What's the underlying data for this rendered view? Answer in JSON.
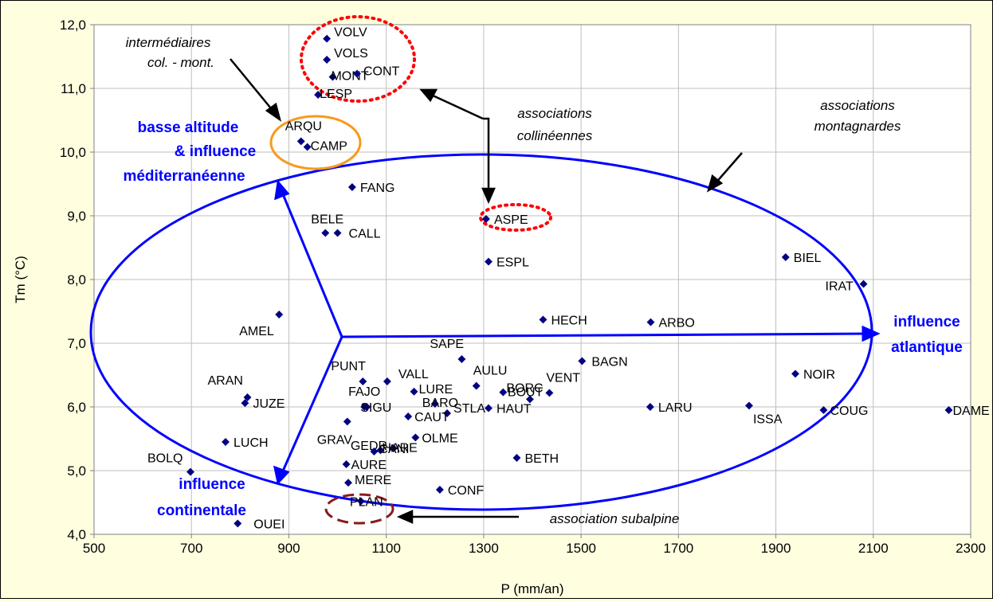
{
  "chart_data": {
    "type": "scatter",
    "xlabel": "P (mm/an)",
    "ylabel": "Tm (°C)",
    "xlim": [
      500,
      2300
    ],
    "ylim": [
      4.0,
      12.0
    ],
    "x_ticks": [
      "500",
      "700",
      "900",
      "1100",
      "1300",
      "1500",
      "1700",
      "1900",
      "2100",
      "2300"
    ],
    "y_ticks": [
      "4,0",
      "5,0",
      "6,0",
      "7,0",
      "8,0",
      "9,0",
      "10,0",
      "11,0",
      "12,0"
    ],
    "grid": true,
    "marker_color": "#000080",
    "points": [
      {
        "label": "VOLV",
        "x": 978,
        "y": 11.78
      },
      {
        "label": "VOLS",
        "x": 978,
        "y": 11.45
      },
      {
        "label": "MONT",
        "x": 990,
        "y": 11.18
      },
      {
        "label": "CONT",
        "x": 1040,
        "y": 11.23
      },
      {
        "label": "LESP",
        "x": 960,
        "y": 10.9
      },
      {
        "label": "ARQU",
        "x": 925,
        "y": 10.17
      },
      {
        "label": "CAMP",
        "x": 938,
        "y": 10.08
      },
      {
        "label": "FANG",
        "x": 1030,
        "y": 9.45
      },
      {
        "label": "ASPE",
        "x": 1305,
        "y": 8.95
      },
      {
        "label": "BELE",
        "x": 975,
        "y": 8.73
      },
      {
        "label": "CALL",
        "x": 1000,
        "y": 8.73
      },
      {
        "label": "BIEL",
        "x": 1920,
        "y": 8.35
      },
      {
        "label": "ESPL",
        "x": 1310,
        "y": 8.28
      },
      {
        "label": "IRAT",
        "x": 2080,
        "y": 7.93
      },
      {
        "label": "AMEL",
        "x": 880,
        "y": 7.45
      },
      {
        "label": "HECH",
        "x": 1422,
        "y": 7.37
      },
      {
        "label": "ARBO",
        "x": 1643,
        "y": 7.33
      },
      {
        "label": "SAPE",
        "x": 1255,
        "y": 6.75
      },
      {
        "label": "BAGN",
        "x": 1502,
        "y": 6.72
      },
      {
        "label": "NOIR",
        "x": 1940,
        "y": 6.52
      },
      {
        "label": "PUNT",
        "x": 1052,
        "y": 6.4
      },
      {
        "label": "VALL",
        "x": 1102,
        "y": 6.4
      },
      {
        "label": "AULU",
        "x": 1285,
        "y": 6.33
      },
      {
        "label": "BORC",
        "x": 1340,
        "y": 6.23
      },
      {
        "label": "VENT",
        "x": 1435,
        "y": 6.22
      },
      {
        "label": "LURE",
        "x": 1157,
        "y": 6.24
      },
      {
        "label": "ARAN",
        "x": 815,
        "y": 6.15
      },
      {
        "label": "BOUT",
        "x": 1395,
        "y": 6.12
      },
      {
        "label": "BARO",
        "x": 1200,
        "y": 6.05
      },
      {
        "label": "JUZE",
        "x": 810,
        "y": 6.06
      },
      {
        "label": "FAJO",
        "x": 1055,
        "y": 6.0
      },
      {
        "label": "SIGU",
        "x": 1060,
        "y": 6.0
      },
      {
        "label": "HAUT",
        "x": 1310,
        "y": 5.98
      },
      {
        "label": "LARU",
        "x": 1642,
        "y": 6.0
      },
      {
        "label": "ISSA",
        "x": 1845,
        "y": 6.02
      },
      {
        "label": "COUG",
        "x": 1998,
        "y": 5.95
      },
      {
        "label": "DAME",
        "x": 2255,
        "y": 5.95
      },
      {
        "label": "STLA",
        "x": 1225,
        "y": 5.9
      },
      {
        "label": "CAUT",
        "x": 1145,
        "y": 5.85
      },
      {
        "label": "GRAV",
        "x": 1020,
        "y": 5.77
      },
      {
        "label": "OLME",
        "x": 1160,
        "y": 5.52
      },
      {
        "label": "LUCH",
        "x": 770,
        "y": 5.45
      },
      {
        "label": "GEDR",
        "x": 1115,
        "y": 5.35
      },
      {
        "label": "HARE",
        "x": 1088,
        "y": 5.32
      },
      {
        "label": "CANI",
        "x": 1075,
        "y": 5.3
      },
      {
        "label": "BETH",
        "x": 1368,
        "y": 5.2
      },
      {
        "label": "AURE",
        "x": 1018,
        "y": 5.1
      },
      {
        "label": "BOLQ",
        "x": 698,
        "y": 4.98
      },
      {
        "label": "MERE",
        "x": 1022,
        "y": 4.81
      },
      {
        "label": "CONF",
        "x": 1210,
        "y": 4.7
      },
      {
        "label": "PLAN",
        "x": 1048,
        "y": 4.52
      },
      {
        "label": "OUEI",
        "x": 795,
        "y": 4.17
      }
    ]
  },
  "annotations": {
    "intermediaires_line1": "intermédiaires",
    "intermediaires_line2": "col. - mont.",
    "collineennes_line1": "associations",
    "collineennes_line2": "collinéennes",
    "montagnardes_line1": "associations",
    "montagnardes_line2": "montagnardes",
    "subalpine": "association subalpine",
    "basse_line1": "basse altitude",
    "basse_line2": "& influence",
    "basse_line3": "méditerranéenne",
    "atlantique_line1": "influence",
    "atlantique_line2": "atlantique",
    "continentale_line1": "influence",
    "continentale_line2": "continentale"
  },
  "colors": {
    "background": "#ffffe0",
    "plot_area": "#ffffff",
    "grid": "#bfbfbf",
    "blue_ellipse": "#0000ff",
    "orange_ellipse": "#f79a1c",
    "red_dotted": "#ff0000",
    "dark_red_dashed": "#8b1a1a"
  }
}
